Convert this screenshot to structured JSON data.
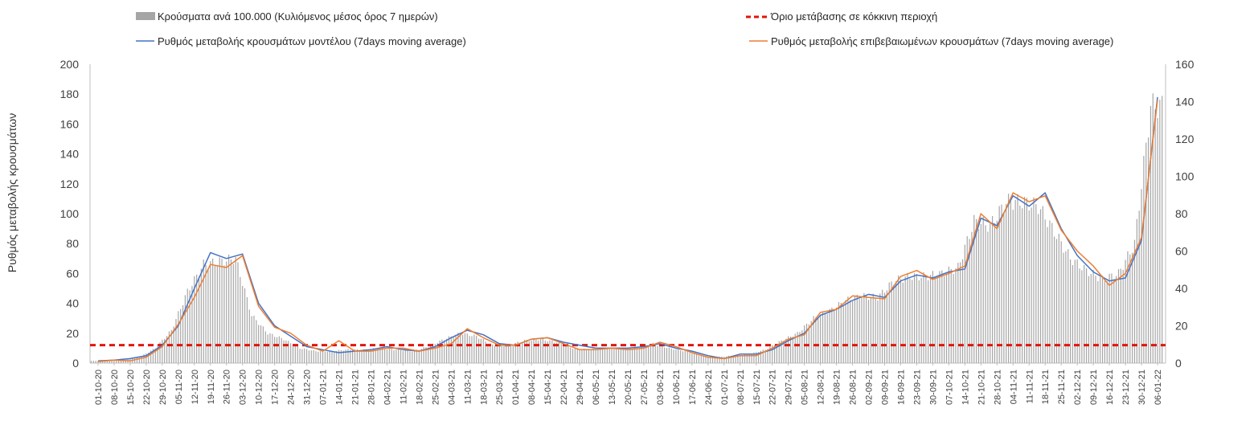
{
  "chart_data": {
    "type": "bar",
    "legend": {
      "bars": "Κρούσματα ανά 100.000 (Κυλιόμενος μέσος όρος 7 ημερών)",
      "threshold": "Όριο μετάβασης σε κόκκινη περιοχή",
      "model": "Ρυθμός μεταβολής κρουσμάτων μοντέλου (7days moving average)",
      "confirmed": "Ρυθμός μεταβολής επιβεβαιωμένων κρουσμάτων (7days moving average)"
    },
    "ylabel": "Ρυθμός μεταβολής κρουσμάτων",
    "ylim_left": [
      0,
      200
    ],
    "yticks_left": [
      0,
      20,
      40,
      60,
      80,
      100,
      120,
      140,
      160,
      180,
      200
    ],
    "ylim_right": [
      0,
      160
    ],
    "yticks_right": [
      0,
      20,
      40,
      60,
      80,
      100,
      120,
      140,
      160
    ],
    "threshold_value": 12,
    "x_dates": [
      "01-10-20",
      "08-10-20",
      "15-10-20",
      "22-10-20",
      "29-10-20",
      "05-11-20",
      "12-11-20",
      "19-11-20",
      "26-11-20",
      "03-12-20",
      "10-12-20",
      "17-12-20",
      "24-12-20",
      "31-12-20",
      "07-01-21",
      "14-01-21",
      "21-01-21",
      "28-01-21",
      "04-02-21",
      "11-02-21",
      "18-02-21",
      "25-02-21",
      "04-03-21",
      "11-03-21",
      "18-03-21",
      "25-03-21",
      "01-04-21",
      "08-04-21",
      "15-04-21",
      "22-04-21",
      "29-04-21",
      "06-05-21",
      "13-05-21",
      "20-05-21",
      "27-05-21",
      "03-06-21",
      "10-06-21",
      "17-06-21",
      "24-06-21",
      "01-07-21",
      "08-07-21",
      "15-07-21",
      "22-07-21",
      "29-07-21",
      "05-08-21",
      "12-08-21",
      "19-08-21",
      "26-08-21",
      "02-09-21",
      "09-09-21",
      "16-09-21",
      "23-09-21",
      "30-09-21",
      "07-10-21",
      "14-10-21",
      "21-10-21",
      "28-10-21",
      "04-11-21",
      "11-11-21",
      "18-11-21",
      "25-11-21",
      "02-12-21",
      "09-12-21",
      "16-12-21",
      "23-12-21",
      "30-12-21",
      "06-01-22"
    ],
    "x_tick_labels": [
      "01-10-20",
      "08-10-20",
      "15-10-20",
      "22-10-20",
      "29-10-20",
      "05-11-20",
      "12-11-20",
      "19-11-20",
      "26-11-20",
      "03-12-20",
      "10-12-20",
      "17-12-20",
      "24-12-20",
      "31-12-20",
      "07-01-21",
      "14-01-21",
      "21-01-21",
      "28-01-21",
      "04-02-21",
      "11-02-21",
      "18-02-21",
      "25-02-21",
      "04-03-21",
      "11-03-21",
      "18-03-21",
      "25-03-21",
      "01-04-21",
      "08-04-21",
      "15-04-21",
      "22-04-21",
      "29-04-21",
      "06-05-21",
      "13-05-21",
      "20-05-21",
      "27-05-21",
      "03-06-21",
      "10-06-21",
      "17-06-21",
      "24-06-21",
      "01-07-21",
      "08-07-21",
      "15-07-21",
      "22-07-21",
      "29-07-21",
      "05-08-21",
      "12-08-21",
      "19-08-21",
      "26-08-21",
      "02-09-21",
      "09-09-21",
      "16-09-21",
      "23-09-21",
      "30-09-21",
      "07-10-21",
      "14-10-21",
      "21-10-21",
      "28-10-21",
      "04-11-21",
      "11-11-21",
      "18-11-21",
      "25-11-21",
      "02-12-21",
      "09-12-21",
      "16-12-21",
      "23-12-21",
      "30-12-21",
      "06-01-22"
    ],
    "series": [
      {
        "name": "Κρούσματα ανά 100.000 (Κυλιόμενος μέσος όρος 7 ημερών)",
        "axis": "left",
        "kind": "bar",
        "values": [
          1.5,
          1.8,
          2,
          4,
          10,
          22,
          48,
          66,
          68,
          70,
          32,
          20,
          16,
          10,
          8,
          8,
          9,
          9,
          10,
          9,
          8,
          11,
          16,
          20,
          18,
          12,
          12,
          15,
          16,
          14,
          10,
          9,
          10,
          10,
          10,
          13,
          10,
          8,
          5,
          4,
          5,
          6,
          9,
          15,
          20,
          30,
          35,
          42,
          45,
          44,
          55,
          58,
          58,
          60,
          64,
          95,
          92,
          108,
          108,
          105,
          88,
          70,
          62,
          56,
          60,
          80,
          172
        ]
      },
      {
        "name": "Ρυθμός μεταβολής κρουσμάτων μοντέλου (7days moving average)",
        "axis": "left",
        "kind": "line",
        "color": "#4472c4",
        "values": [
          1.5,
          2,
          3,
          5,
          12,
          25,
          50,
          74,
          70,
          73,
          40,
          25,
          18,
          11,
          9,
          7,
          8,
          9,
          11,
          9,
          8,
          11,
          17,
          22,
          19,
          13,
          12,
          16,
          17,
          14,
          12,
          10,
          10,
          10,
          11,
          13,
          10,
          8,
          5,
          3,
          6,
          6,
          9,
          15,
          20,
          32,
          36,
          42,
          46,
          44,
          55,
          59,
          57,
          61,
          63,
          97,
          92,
          112,
          105,
          114,
          90,
          72,
          61,
          55,
          57,
          82,
          178
        ]
      },
      {
        "name": "Ρυθμός μεταβολής επιβεβαιωμένων κρουσμάτων (7days moving average)",
        "axis": "left",
        "kind": "line",
        "color": "#ed7d31",
        "values": [
          1,
          2,
          1.5,
          4,
          11,
          26,
          44,
          66,
          64,
          72,
          38,
          24,
          20,
          12,
          8,
          15,
          8,
          8,
          10,
          10,
          8,
          10,
          13,
          23,
          17,
          12,
          12,
          16,
          17,
          13,
          9,
          9,
          10,
          9,
          10,
          14,
          11,
          7,
          4,
          3,
          5,
          5,
          10,
          16,
          19,
          34,
          36,
          45,
          44,
          43,
          58,
          62,
          56,
          60,
          65,
          100,
          90,
          114,
          108,
          112,
          89,
          75,
          65,
          52,
          60,
          84,
          176
        ]
      }
    ]
  }
}
